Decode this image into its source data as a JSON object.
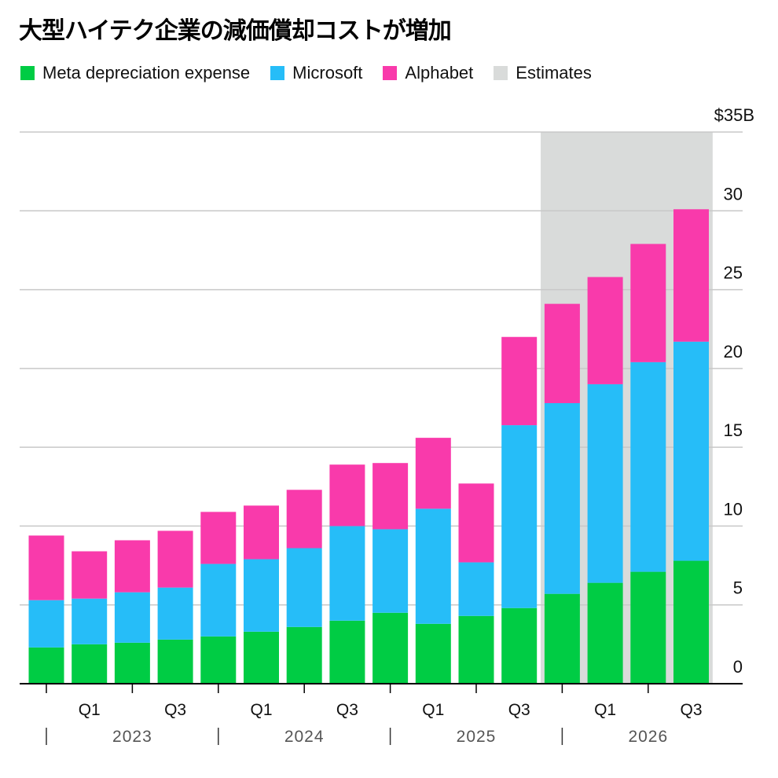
{
  "title": "大型ハイテク企業の減価償却コストが増加",
  "colors": {
    "meta": "#00cc44",
    "microsoft": "#26bdf8",
    "alphabet": "#f93aab",
    "estimates": "#d9dbda"
  },
  "chart_data": {
    "type": "bar",
    "stacked": true,
    "title": "大型ハイテク企業の減価償却コストが増加",
    "categories": [
      "Q4 2022",
      "Q1 2023",
      "Q2 2023",
      "Q3 2023",
      "Q4 2023",
      "Q1 2024",
      "Q2 2024",
      "Q3 2024",
      "Q4 2024",
      "Q1 2025",
      "Q2 2025",
      "Q3 2025",
      "Q4 2025",
      "Q1 2026",
      "Q2 2026",
      "Q3 2026"
    ],
    "series": [
      {
        "name": "Meta depreciation expense",
        "values": [
          2.3,
          2.5,
          2.6,
          2.8,
          3.0,
          3.3,
          3.6,
          4.0,
          4.5,
          3.8,
          4.3,
          4.8,
          5.7,
          6.4,
          7.1,
          7.8
        ]
      },
      {
        "name": "Microsoft",
        "values": [
          3.0,
          2.9,
          3.2,
          3.3,
          4.6,
          4.6,
          5.0,
          6.0,
          5.3,
          7.3,
          3.4,
          11.6,
          12.1,
          12.6,
          13.3,
          13.9
        ]
      },
      {
        "name": "Alphabet",
        "values": [
          4.1,
          3.0,
          3.3,
          3.6,
          3.3,
          3.4,
          3.7,
          3.9,
          4.2,
          4.5,
          5.0,
          5.6,
          6.3,
          6.8,
          7.5,
          8.4
        ]
      }
    ],
    "estimates": {
      "label": "Estimates",
      "from": "Q4 2025",
      "to": "Q3 2026"
    },
    "ylim": [
      0,
      35
    ],
    "yticks": [
      0,
      5,
      10,
      15,
      20,
      25,
      30,
      35
    ],
    "ytick_labels": [
      "0",
      "5",
      "10",
      "15",
      "20",
      "25",
      "30",
      "$35B"
    ],
    "xtick_labels": [
      "",
      "Q1",
      "",
      "Q3",
      "",
      "Q1",
      "",
      "Q3",
      "",
      "Q1",
      "",
      "Q3",
      "",
      "Q1",
      "",
      "Q3"
    ],
    "year_labels": [
      "2023",
      "2024",
      "2025",
      "2026"
    ],
    "grid": true,
    "legend": "top-left"
  }
}
